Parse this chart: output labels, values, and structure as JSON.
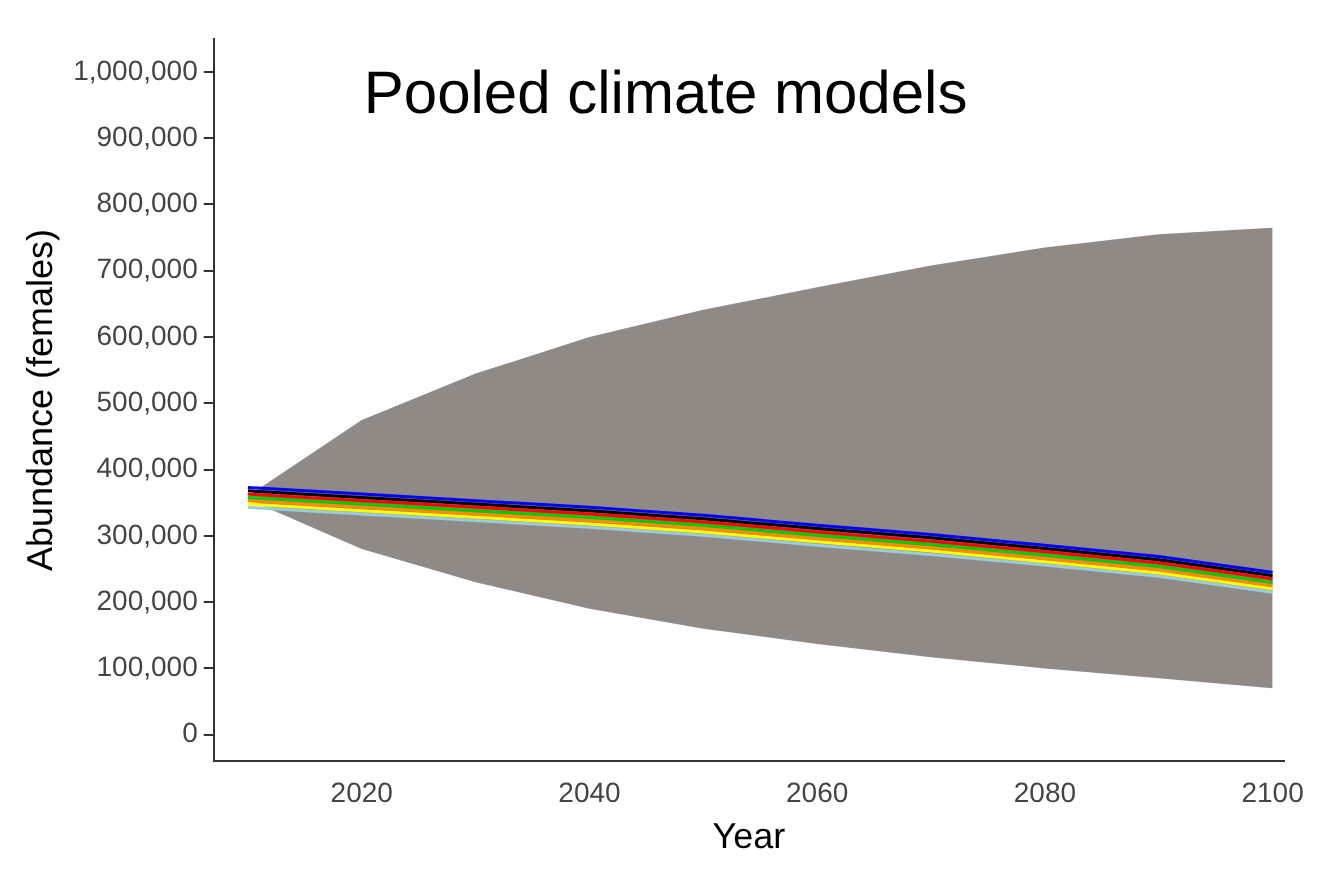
{
  "chart_data": {
    "type": "line",
    "title": "Pooled climate models",
    "xlabel": "Year",
    "ylabel": "Abundance (females)",
    "x": [
      2010,
      2020,
      2030,
      2040,
      2050,
      2060,
      2070,
      2080,
      2090,
      2100
    ],
    "series": [
      {
        "color": "#ff0000",
        "values": [
          363000,
          353000,
          343000,
          333000,
          321000,
          306000,
          292000,
          276000,
          259000,
          235000
        ],
        "lower": [
          355000,
          280000,
          230000,
          190000,
          160000,
          137000,
          117000,
          100000,
          85000,
          70000
        ],
        "upper": [
          360000,
          475000,
          545000,
          600000,
          641000,
          675000,
          708000,
          735000,
          755000,
          765000
        ]
      },
      {
        "color": "#0000ff",
        "values": [
          373000,
          363000,
          353000,
          343000,
          331000,
          316000,
          302000,
          286000,
          269000,
          245000
        ]
      },
      {
        "color": "#000000",
        "values": [
          368000,
          358000,
          348000,
          338000,
          326000,
          311000,
          297000,
          281000,
          264000,
          240000
        ]
      },
      {
        "color": "#00cc00",
        "values": [
          358000,
          348000,
          338000,
          328000,
          316000,
          301000,
          287000,
          271000,
          254000,
          230000
        ]
      },
      {
        "color": "#ff8c00",
        "values": [
          353000,
          343000,
          333000,
          323000,
          311000,
          296000,
          282000,
          266000,
          249000,
          225000
        ]
      },
      {
        "color": "#ffff00",
        "values": [
          348000,
          338000,
          328000,
          318000,
          306000,
          291000,
          277000,
          261000,
          244000,
          220000
        ]
      },
      {
        "color": "#99ccdd",
        "values": [
          343000,
          333000,
          323000,
          313000,
          301000,
          286000,
          272000,
          256000,
          239000,
          215000
        ]
      }
    ],
    "xlim": [
      2007,
      2101
    ],
    "xticks": [
      2020,
      2040,
      2060,
      2080,
      2100
    ],
    "ylim": [
      -40000,
      1050000
    ],
    "yticks": [
      {
        "value": 0,
        "label": "0"
      },
      {
        "value": 100000,
        "label": "100,000"
      },
      {
        "value": 200000,
        "label": "200,000"
      },
      {
        "value": 300000,
        "label": "300,000"
      },
      {
        "value": 400000,
        "label": "400,000"
      },
      {
        "value": 500000,
        "label": "500,000"
      },
      {
        "value": 600000,
        "label": "600,000"
      },
      {
        "value": 700000,
        "label": "700,000"
      },
      {
        "value": 800000,
        "label": "800,000"
      },
      {
        "value": 900000,
        "label": "900,000"
      },
      {
        "value": 1000000,
        "label": "1,000,000"
      }
    ],
    "grid": false,
    "legend": false,
    "marker": "none",
    "line_style": "solid"
  }
}
